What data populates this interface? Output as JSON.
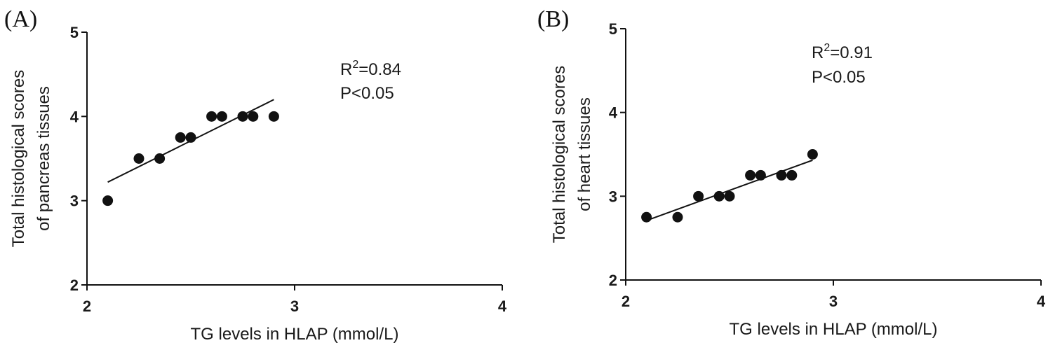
{
  "chart_data": [
    {
      "type": "scatter",
      "panel": "(A)",
      "xlabel": "TG levels in HLAP (mmol/L)",
      "ylabel_lines": [
        "Total histological scores",
        "of pancreas tissues"
      ],
      "xlim": [
        2,
        4
      ],
      "ylim": [
        2,
        5
      ],
      "xticks": [
        "2",
        "3",
        "4"
      ],
      "yticks": [
        "2",
        "3",
        "4",
        "5"
      ],
      "points": [
        {
          "x": 2.1,
          "y": 3.0
        },
        {
          "x": 2.25,
          "y": 3.5
        },
        {
          "x": 2.35,
          "y": 3.5
        },
        {
          "x": 2.45,
          "y": 3.75
        },
        {
          "x": 2.5,
          "y": 3.75
        },
        {
          "x": 2.6,
          "y": 4.0
        },
        {
          "x": 2.65,
          "y": 4.0
        },
        {
          "x": 2.75,
          "y": 4.0
        },
        {
          "x": 2.8,
          "y": 4.0
        },
        {
          "x": 2.9,
          "y": 4.0
        }
      ],
      "fit_line": {
        "x1": 2.1,
        "y1": 3.22,
        "x2": 2.9,
        "y2": 4.2
      },
      "annotation": {
        "r_prefix": "R",
        "r_sup": "2",
        "r_value": "=0.84",
        "p_text": "P<0.05"
      }
    },
    {
      "type": "scatter",
      "panel": "(B)",
      "xlabel": "TG levels in HLAP (mmol/L)",
      "ylabel_lines": [
        "Total histological scores",
        "of heart tissues"
      ],
      "xlim": [
        2,
        4
      ],
      "ylim": [
        2,
        5
      ],
      "xticks": [
        "2",
        "3",
        "4"
      ],
      "yticks": [
        "2",
        "3",
        "4",
        "5"
      ],
      "points": [
        {
          "x": 2.1,
          "y": 2.75
        },
        {
          "x": 2.25,
          "y": 2.75
        },
        {
          "x": 2.35,
          "y": 3.0
        },
        {
          "x": 2.45,
          "y": 3.0
        },
        {
          "x": 2.5,
          "y": 3.0
        },
        {
          "x": 2.6,
          "y": 3.25
        },
        {
          "x": 2.65,
          "y": 3.25
        },
        {
          "x": 2.75,
          "y": 3.25
        },
        {
          "x": 2.8,
          "y": 3.25
        },
        {
          "x": 2.9,
          "y": 3.5
        }
      ],
      "fit_line": {
        "x1": 2.1,
        "y1": 2.71,
        "x2": 2.9,
        "y2": 3.43
      },
      "annotation": {
        "r_prefix": "R",
        "r_sup": "2",
        "r_value": "=0.91",
        "p_text": "P<0.05"
      }
    }
  ]
}
